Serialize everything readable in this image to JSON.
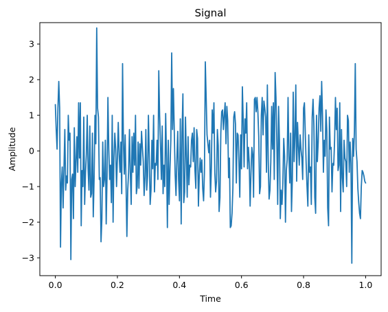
{
  "chart_data": {
    "type": "line",
    "title": "Signal",
    "xlabel": "Time",
    "ylabel": "Amplitude",
    "xlim": [
      -0.05,
      1.05
    ],
    "ylim": [
      -3.5,
      3.6
    ],
    "xticks": [
      0.0,
      0.2,
      0.4,
      0.6,
      0.8,
      1.0
    ],
    "xtick_labels": [
      "0.0",
      "0.2",
      "0.4",
      "0.6",
      "0.8",
      "1.0"
    ],
    "yticks": [
      -3,
      -2,
      -1,
      0,
      1,
      2,
      3
    ],
    "ytick_labels": [
      "−3",
      "−2",
      "−1",
      "0",
      "1",
      "2",
      "3"
    ],
    "grid": false,
    "series": [
      {
        "color": "#1f77b4",
        "x_start": 0.0,
        "x_end": 1.0,
        "values": [
          1.3,
          0.6,
          0.05,
          1.2,
          1.95,
          1.2,
          -2.7,
          -0.9,
          -0.45,
          -1.6,
          -0.5,
          0.6,
          -1.1,
          -0.7,
          -0.9,
          1.0,
          0.3,
          0.5,
          -3.05,
          -0.8,
          -0.65,
          -1.9,
          0.65,
          -1.0,
          -0.3,
          0.4,
          -0.6,
          1.35,
          -0.2,
          1.35,
          -2.1,
          -0.55,
          -1.0,
          0.95,
          -1.5,
          -0.6,
          -0.1,
          1.0,
          -0.5,
          -1.1,
          0.7,
          -1.3,
          -1.2,
          0.5,
          -1.85,
          -0.75,
          1.0,
          0.2,
          3.45,
          1.2,
          0.95,
          -0.8,
          -0.75,
          -2.55,
          -1.9,
          0.25,
          -1.0,
          -0.8,
          0.3,
          -2.05,
          -0.7,
          1.5,
          0.05,
          -0.8,
          -0.4,
          -1.45,
          1.0,
          -2.0,
          -0.2,
          0.5,
          0.05,
          -1.0,
          -0.2,
          0.8,
          -0.1,
          -0.6,
          0.25,
          -1.2,
          2.45,
          0.25,
          -0.65,
          0.45,
          -0.85,
          -2.4,
          -1.1,
          -0.6,
          0.6,
          -0.6,
          -1.5,
          0.4,
          -0.6,
          0.5,
          -0.4,
          1.0,
          -1.2,
          -1.0,
          0.25,
          -1.05,
          0.2,
          -0.4,
          0.55,
          0.1,
          -0.3,
          -1.25,
          -0.75,
          0.6,
          -1.1,
          -0.7,
          1.0,
          -0.15,
          -1.5,
          -1.1,
          0.3,
          -0.5,
          1.0,
          -1.15,
          -0.35,
          -0.4,
          0.3,
          -0.8,
          2.25,
          1.0,
          0.2,
          -0.8,
          0.7,
          -1.2,
          -0.4,
          -1.0,
          1.05,
          -0.2,
          -2.15,
          0.3,
          -1.5,
          -0.5,
          0.3,
          2.75,
          0.6,
          1.75,
          0.55,
          -0.65,
          -1.25,
          -0.25,
          0.55,
          -0.8,
          -1.4,
          0.9,
          -2.05,
          0.5,
          1.6,
          -1.45,
          -1.15,
          0.95,
          -0.15,
          -1.3,
          0.4,
          -0.95,
          -0.4,
          -0.45,
          0.3,
          0.5,
          -0.3,
          0.65,
          -0.55,
          -1.05,
          0.6,
          0.35,
          -1.55,
          -0.7,
          -0.2,
          -0.6,
          -0.25,
          -1.05,
          -1.4,
          -0.6,
          2.5,
          1.5,
          0.45,
          0.2,
          -0.05,
          0.3,
          -1.3,
          -0.5,
          1.15,
          0.5,
          1.35,
          -0.6,
          -1.15,
          -0.85,
          0.6,
          0.15,
          -1.7,
          -1.3,
          0.5,
          1.1,
          1.15,
          0.6,
          1.0,
          1.35,
          0.2,
          1.25,
          0.85,
          -0.75,
          -0.2,
          -2.15,
          -2.1,
          -1.75,
          -1.05,
          0.95,
          1.1,
          0.75,
          -0.9,
          0.5,
          0.45,
          -0.3,
          -1.3,
          0.45,
          -0.5,
          1.8,
          0.85,
          -0.45,
          0.9,
          0.5,
          1.35,
          -0.5,
          0.1,
          -0.35,
          -1.55,
          -0.6,
          0.1,
          -0.1,
          -1.3,
          1.45,
          1.5,
          1.1,
          1.5,
          1.1,
          0.4,
          -1.2,
          -1.0,
          1.0,
          1.5,
          0.45,
          1.4,
          1.2,
          0.95,
          -0.6,
          1.85,
          -0.25,
          -1.35,
          -1.1,
          -0.3,
          1.25,
          0.05,
          1.35,
          -0.8,
          2.2,
          1.5,
          0.25,
          -1.5,
          1.25,
          0.3,
          -1.9,
          -1.1,
          -1.5,
          -0.9,
          0.35,
          -0.15,
          -2.0,
          -0.55,
          -0.25,
          1.5,
          -0.15,
          -0.9,
          0.5,
          -1.7,
          -0.8,
          1.65,
          -0.3,
          0.4,
          1.85,
          -0.85,
          0.8,
          0.15,
          -0.4,
          0.45,
          0.05,
          -0.2,
          -0.8,
          1.2,
          1.35,
          0.5,
          -0.35,
          -1.0,
          -1.55,
          0.45,
          -0.6,
          -0.45,
          -1.5,
          0.95,
          1.45,
          0.7,
          -1.3,
          -1.75,
          1.0,
          -0.3,
          0.25,
          1.2,
          1.55,
          0.55,
          1.95,
          1.0,
          -0.6,
          0.3,
          -0.15,
          1.15,
          0.55,
          -1.6,
          -2.1,
          0.95,
          0.05,
          0.1,
          -1.15,
          -0.35,
          -0.4,
          0.3,
          1.5,
          0.6,
          1.2,
          -0.55,
          -0.4,
          1.35,
          -1.7,
          0.6,
          -0.75,
          -1.15,
          0.3,
          -0.2,
          -0.3,
          -1.0,
          1.0,
          0.85,
          -0.6,
          0.25,
          -0.35,
          -3.15,
          0.35,
          -0.15,
          0.55,
          2.45,
          0.05,
          -0.3,
          -1.05,
          -1.45,
          -1.75,
          -1.9,
          -1.0,
          -0.55,
          -0.6,
          -0.7,
          -0.85,
          -0.9
        ]
      }
    ]
  }
}
